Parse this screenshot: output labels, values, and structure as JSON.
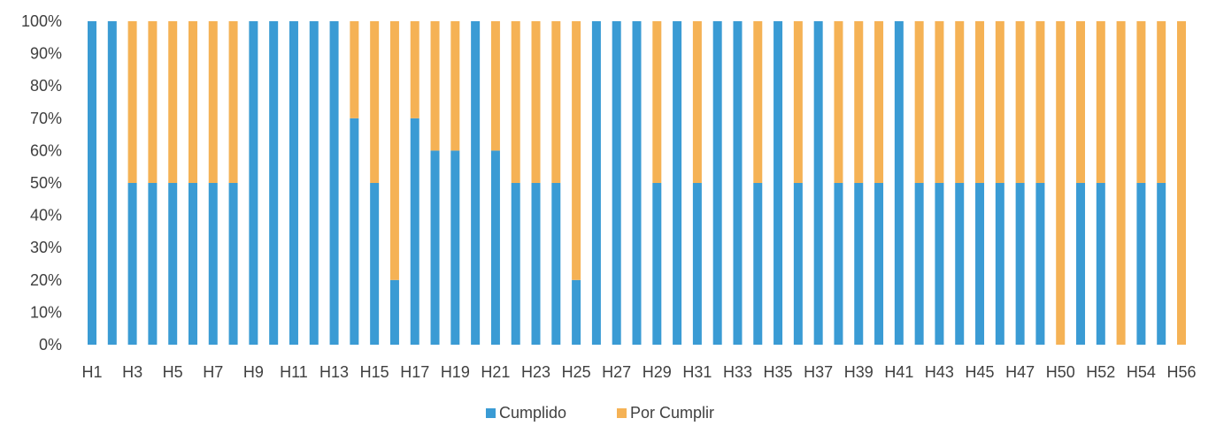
{
  "chart_data": {
    "type": "bar",
    "stacked": true,
    "percent_stacked": true,
    "title": "",
    "xlabel": "",
    "ylabel": "",
    "ylim": [
      0,
      100
    ],
    "y_ticks": [
      "0%",
      "10%",
      "20%",
      "30%",
      "40%",
      "50%",
      "60%",
      "70%",
      "80%",
      "90%",
      "100%"
    ],
    "categories": [
      "H1",
      "H2",
      "H3",
      "H4",
      "H5",
      "H6",
      "H7",
      "H8",
      "H9",
      "H10",
      "H11",
      "H12",
      "H13",
      "H14",
      "H15",
      "H16",
      "H17",
      "H18",
      "H19",
      "H20",
      "H21",
      "H22",
      "H23",
      "H24",
      "H25",
      "H26",
      "H27",
      "H28",
      "H29",
      "H30",
      "H31",
      "H32",
      "H33",
      "H34",
      "H35",
      "H36",
      "H37",
      "H38",
      "H39",
      "H40",
      "H41",
      "H42",
      "H43",
      "H44",
      "H45",
      "H46",
      "H47",
      "H48",
      "H50",
      "H51",
      "H52",
      "H53",
      "H54",
      "H55",
      "H56"
    ],
    "visible_x_labels": [
      "H1",
      "H3",
      "H5",
      "H7",
      "H9",
      "H11",
      "H13",
      "H15",
      "H17",
      "H19",
      "H21",
      "H23",
      "H25",
      "H27",
      "H29",
      "H31",
      "H33",
      "H35",
      "H37",
      "H39",
      "H41",
      "H43",
      "H45",
      "H47",
      "H50",
      "H52",
      "H54",
      "H56"
    ],
    "series": [
      {
        "name": "Cumplido",
        "color": "#3a9bd4",
        "values": [
          100,
          100,
          50,
          50,
          50,
          50,
          50,
          50,
          100,
          100,
          100,
          100,
          100,
          70,
          50,
          20,
          70,
          60,
          60,
          100,
          60,
          50,
          50,
          50,
          20,
          100,
          100,
          100,
          50,
          100,
          50,
          100,
          100,
          50,
          100,
          50,
          100,
          50,
          50,
          50,
          100,
          50,
          50,
          50,
          50,
          50,
          50,
          50,
          0,
          50,
          50,
          0,
          50,
          50,
          0
        ]
      },
      {
        "name": "Por Cumplir",
        "color": "#f5b255",
        "values": [
          0,
          0,
          50,
          50,
          50,
          50,
          50,
          50,
          0,
          0,
          0,
          0,
          0,
          30,
          50,
          80,
          30,
          40,
          40,
          0,
          40,
          50,
          50,
          50,
          80,
          0,
          0,
          0,
          50,
          0,
          50,
          0,
          0,
          50,
          0,
          50,
          0,
          50,
          50,
          50,
          0,
          50,
          50,
          50,
          50,
          50,
          50,
          50,
          100,
          50,
          50,
          100,
          50,
          50,
          100
        ]
      }
    ],
    "grid": false,
    "legend_position": "bottom-center"
  }
}
